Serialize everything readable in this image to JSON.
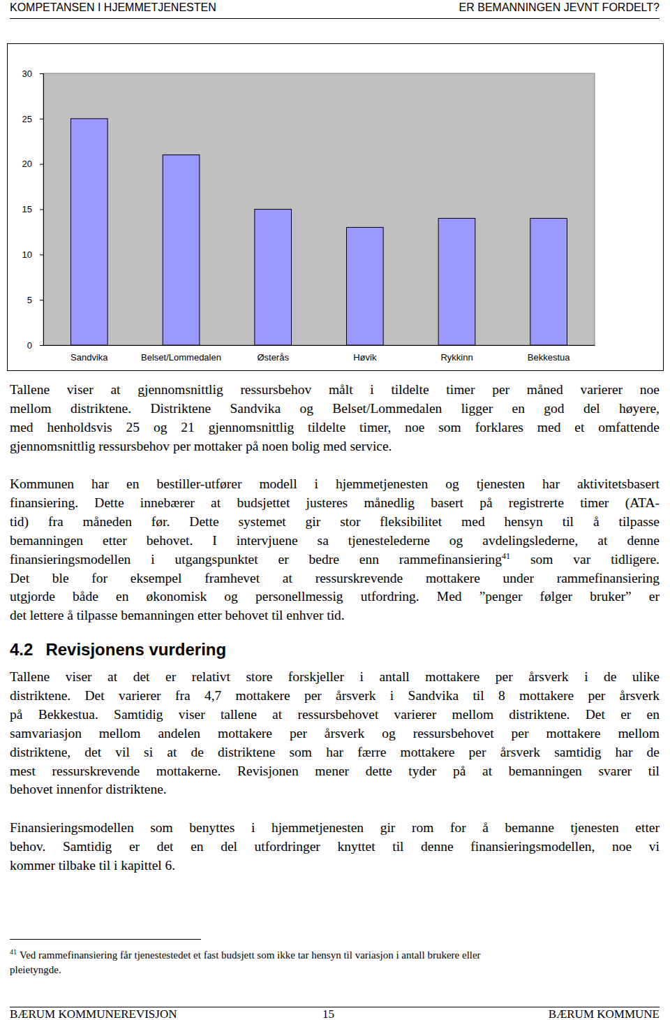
{
  "header": {
    "left": "KOMPETANSEN I HJEMMETJENESTEN",
    "right": "ER BEMANNINGEN JEVNT FORDELT?"
  },
  "chart_data": {
    "type": "bar",
    "categories": [
      "Sandvika",
      "Belset/Lommedalen",
      "Østerås",
      "Høvik",
      "Rykkinn",
      "Bekkestua"
    ],
    "values": [
      25,
      21,
      15,
      13,
      14,
      14
    ],
    "color": "#9999ff",
    "ylim": [
      0,
      30
    ],
    "yticks": [
      0,
      5,
      10,
      15,
      20,
      25,
      30
    ],
    "grid": false
  },
  "blocks": [
    {
      "kind": "paragraph",
      "lines": [
        "Tallene viser at gjennomsnittlig ressursbehov målt i tildelte timer per måned varierer noe",
        "mellom distriktene. Distriktene Sandvika og Belset/Lommedalen ligger en god del høyere,",
        "med henholdsvis 25 og 21 gjennomsnittlig tildelte timer, noe som forklares med et omfattende",
        "gjennomsnittlig ressursbehov per mottaker på noen bolig med service."
      ]
    },
    {
      "kind": "paragraph",
      "lines": [
        "Kommunen har en bestiller-utfører modell i hjemmetjenesten og tjenesten har aktivitetsbasert",
        "finansiering. Dette innebærer at budsjettet justeres månedlig basert på registrerte timer (ATA-",
        "tid) fra måneden før. Dette systemet gir stor fleksibilitet med hensyn til å tilpasse",
        "bemanningen etter behovet. I intervjuene sa tjenestelederne og avdelingslederne, at denne",
        [
          {
            "text": "finansieringsmodellen i utgangspunktet er bedre enn rammefinansiering"
          },
          {
            "sup": "41"
          },
          {
            "text": " som var tidligere."
          }
        ],
        "Det ble for eksempel framhevet at ressurskrevende mottakere under rammefinansiering",
        "utgjorde både en økonomisk og personellmessig utfordring. Med ”penger følger bruker” er",
        "det lettere å tilpasse bemanningen etter behovet til enhver tid."
      ]
    },
    {
      "kind": "heading",
      "number": "4.2",
      "title": "Revisjonens vurdering"
    },
    {
      "kind": "paragraph",
      "lines": [
        "Tallene viser at det er relativt store forskjeller i antall mottakere per årsverk i de ulike",
        "distriktene. Det varierer fra 4,7 mottakere per årsverk i Sandvika til 8 mottakere per årsverk",
        "på Bekkestua. Samtidig viser tallene at ressursbehovet varierer mellom distriktene. Det er en",
        "samvariasjon mellom andelen mottakere per årsverk og ressursbehovet per mottakere mellom",
        "distriktene, det vil si at de distriktene som har færre mottakere per årsverk samtidig har de",
        "mest ressurskrevende mottakerne. Revisjonen mener dette tyder på at bemanningen svarer til",
        "behovet innenfor distriktene."
      ]
    },
    {
      "kind": "paragraph",
      "lines": [
        "Finansieringsmodellen som benyttes i hjemmetjenesten gir rom for å bemanne tjenesten etter",
        "behov. Samtidig er det en del utfordringer knyttet til denne finansieringsmodellen, noe vi",
        "kommer tilbake til i kapittel 6."
      ]
    }
  ],
  "footnote": {
    "mark": "41",
    "lines": [
      "Ved rammefinansiering får tjenestestedet et fast budsjett som ikke tar hensyn til variasjon i antall brukere eller",
      "pleietyngde."
    ]
  },
  "footer": {
    "left": "BÆRUM KOMMUNEREVISJON",
    "center": "15",
    "right": "BÆRUM KOMMUNE"
  }
}
